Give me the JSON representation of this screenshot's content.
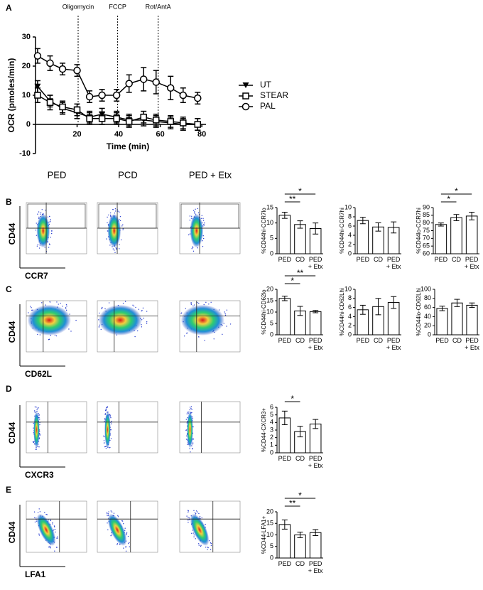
{
  "panel_labels": [
    "A",
    "B",
    "C",
    "D",
    "E"
  ],
  "flow": {
    "columns": [
      "PED",
      "PCD",
      "PED + Etx"
    ],
    "y_label": "CD44",
    "x_labels": [
      "CCR7",
      "CD62L",
      "CXCR3",
      "LFA1"
    ]
  },
  "chart_data": [
    {
      "type": "line",
      "ylabel": "OCR (pmoles/min)",
      "xlabel": "Time (min)",
      "xlim": [
        0,
        82
      ],
      "xticks": [
        20,
        40,
        60,
        80
      ],
      "ylim": [
        -10,
        30
      ],
      "yticks": [
        -10,
        0,
        10,
        20,
        30
      ],
      "x": [
        1,
        7,
        13,
        20,
        26,
        32,
        39,
        45,
        52,
        58,
        65,
        71,
        78
      ],
      "annotations": [
        {
          "x": 20.5,
          "text": "Oligomycin"
        },
        {
          "x": 39.5,
          "text": "FCCP"
        },
        {
          "x": 59,
          "text": "Rot/AntA"
        }
      ],
      "series": [
        {
          "name": "UT",
          "marker": "triangle",
          "color": "#000000",
          "values": [
            13,
            8,
            5.5,
            4,
            2.5,
            3.5,
            2.5,
            1.5,
            1.5,
            1,
            0.5,
            0,
            0
          ],
          "errors": [
            2,
            2,
            2,
            2,
            2,
            2,
            2,
            2,
            2,
            2,
            2,
            2,
            2
          ]
        },
        {
          "name": "STEAR",
          "marker": "square",
          "color": "#000000",
          "values": [
            10,
            7.5,
            6,
            5,
            2,
            2,
            2,
            1,
            2.5,
            1.5,
            1,
            0.5,
            0
          ],
          "errors": [
            2.5,
            2.5,
            2,
            2,
            2,
            2,
            2,
            2,
            2,
            2,
            2,
            2,
            2
          ]
        },
        {
          "name": "PAL",
          "marker": "circle",
          "color": "#000000",
          "values": [
            23.5,
            21,
            19,
            18.5,
            9.5,
            10,
            10,
            14,
            15.5,
            14.5,
            12.5,
            10,
            9
          ],
          "errors": [
            2.5,
            2.5,
            2,
            2,
            2,
            2,
            2,
            3,
            4,
            4,
            4,
            2.5,
            2
          ]
        }
      ]
    },
    {
      "type": "bar",
      "ylabel": "%CD44hi-CCR7lo",
      "categories": [
        "PED",
        "CD",
        "PED + Etx"
      ],
      "values": [
        12.5,
        9.5,
        8.2
      ],
      "errors": [
        1,
        1.2,
        1.8
      ],
      "ylim": [
        0,
        15
      ],
      "yticks": [
        0,
        5,
        10,
        15
      ],
      "significance": [
        {
          "between": [
            "PED",
            "CD"
          ],
          "label": "**"
        },
        {
          "between": [
            "PED",
            "PED + Etx"
          ],
          "label": "*"
        }
      ]
    },
    {
      "type": "bar",
      "ylabel": "%CD44hi-CCR7hi",
      "categories": [
        "PED",
        "CD",
        "PED + Etx"
      ],
      "values": [
        7.2,
        5.8,
        5.7
      ],
      "errors": [
        0.7,
        0.9,
        1.2
      ],
      "ylim": [
        0,
        10
      ],
      "yticks": [
        0,
        2,
        4,
        6,
        8,
        10
      ],
      "significance": []
    },
    {
      "type": "bar",
      "ylabel": "%CD44lo-CCR7hi",
      "categories": [
        "PED",
        "CD",
        "PED + Etx"
      ],
      "values": [
        79,
        83.5,
        84.5
      ],
      "errors": [
        1,
        2,
        2.5
      ],
      "ylim": [
        60,
        90
      ],
      "yticks": [
        60,
        65,
        70,
        75,
        80,
        85,
        90
      ],
      "significance": [
        {
          "between": [
            "PED",
            "CD"
          ],
          "label": "*"
        },
        {
          "between": [
            "PED",
            "PED + Etx"
          ],
          "label": "*"
        }
      ]
    },
    {
      "type": "bar",
      "ylabel": "%CD44hi-CD62lo",
      "categories": [
        "PED",
        "CD",
        "PED + Etx"
      ],
      "values": [
        16,
        10.5,
        10.2
      ],
      "errors": [
        1,
        2,
        0.5
      ],
      "ylim": [
        0,
        20
      ],
      "yticks": [
        0,
        5,
        10,
        15,
        20
      ],
      "significance": [
        {
          "between": [
            "PED",
            "CD"
          ],
          "label": "*"
        },
        {
          "between": [
            "PED",
            "PED + Etx"
          ],
          "label": "**"
        }
      ]
    },
    {
      "type": "bar",
      "ylabel": "%CD44hi-CD62Lhi",
      "categories": [
        "PED",
        "CD",
        "PED + Etx"
      ],
      "values": [
        5.5,
        6.2,
        7.1
      ],
      "errors": [
        1,
        1.8,
        1.3
      ],
      "ylim": [
        0,
        10
      ],
      "yticks": [
        0,
        2,
        4,
        6,
        8,
        10
      ],
      "significance": []
    },
    {
      "type": "bar",
      "ylabel": "%CD44lo-CD62Lhi",
      "categories": [
        "PED",
        "CD",
        "PED + Etx"
      ],
      "values": [
        58,
        70,
        65
      ],
      "errors": [
        5,
        8,
        5
      ],
      "ylim": [
        0,
        100
      ],
      "yticks": [
        0,
        20,
        40,
        60,
        80,
        100
      ],
      "significance": []
    },
    {
      "type": "bar",
      "ylabel": "%CD44-CXCR3+",
      "categories": [
        "PED",
        "CD",
        "PED + Etx"
      ],
      "values": [
        4.6,
        2.8,
        3.8
      ],
      "errors": [
        0.9,
        0.7,
        0.6
      ],
      "ylim": [
        0,
        6
      ],
      "yticks": [
        0,
        1,
        2,
        3,
        4,
        5,
        6
      ],
      "significance": [
        {
          "between": [
            "PED",
            "CD"
          ],
          "label": "*"
        }
      ]
    },
    {
      "type": "bar",
      "ylabel": "%CD44-LFA1+",
      "categories": [
        "PED",
        "CD",
        "PED + Etx"
      ],
      "values": [
        14.5,
        10,
        11
      ],
      "errors": [
        2,
        1.2,
        1.3
      ],
      "ylim": [
        0,
        20
      ],
      "yticks": [
        0,
        5,
        10,
        15,
        20
      ],
      "significance": [
        {
          "between": [
            "PED",
            "CD"
          ],
          "label": "**"
        },
        {
          "between": [
            "PED",
            "PED + Etx"
          ],
          "label": "*"
        }
      ]
    }
  ]
}
